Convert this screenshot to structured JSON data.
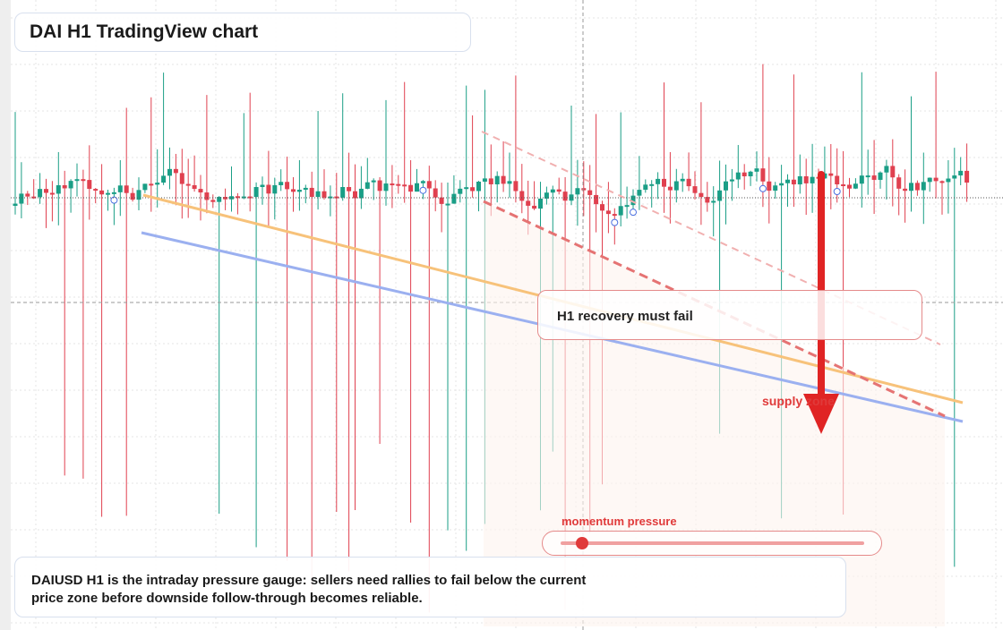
{
  "header": {
    "title": "DAI H1 TradingView chart"
  },
  "annotations": {
    "callout": "H1 recovery must fail",
    "zone": "supply zone",
    "gauge": "momentum pressure"
  },
  "footer": {
    "text": "DAIUSD H1 is the intraday pressure gauge: sellers need rallies to fail below the current price zone before downside follow-through becomes reliable."
  }
}
